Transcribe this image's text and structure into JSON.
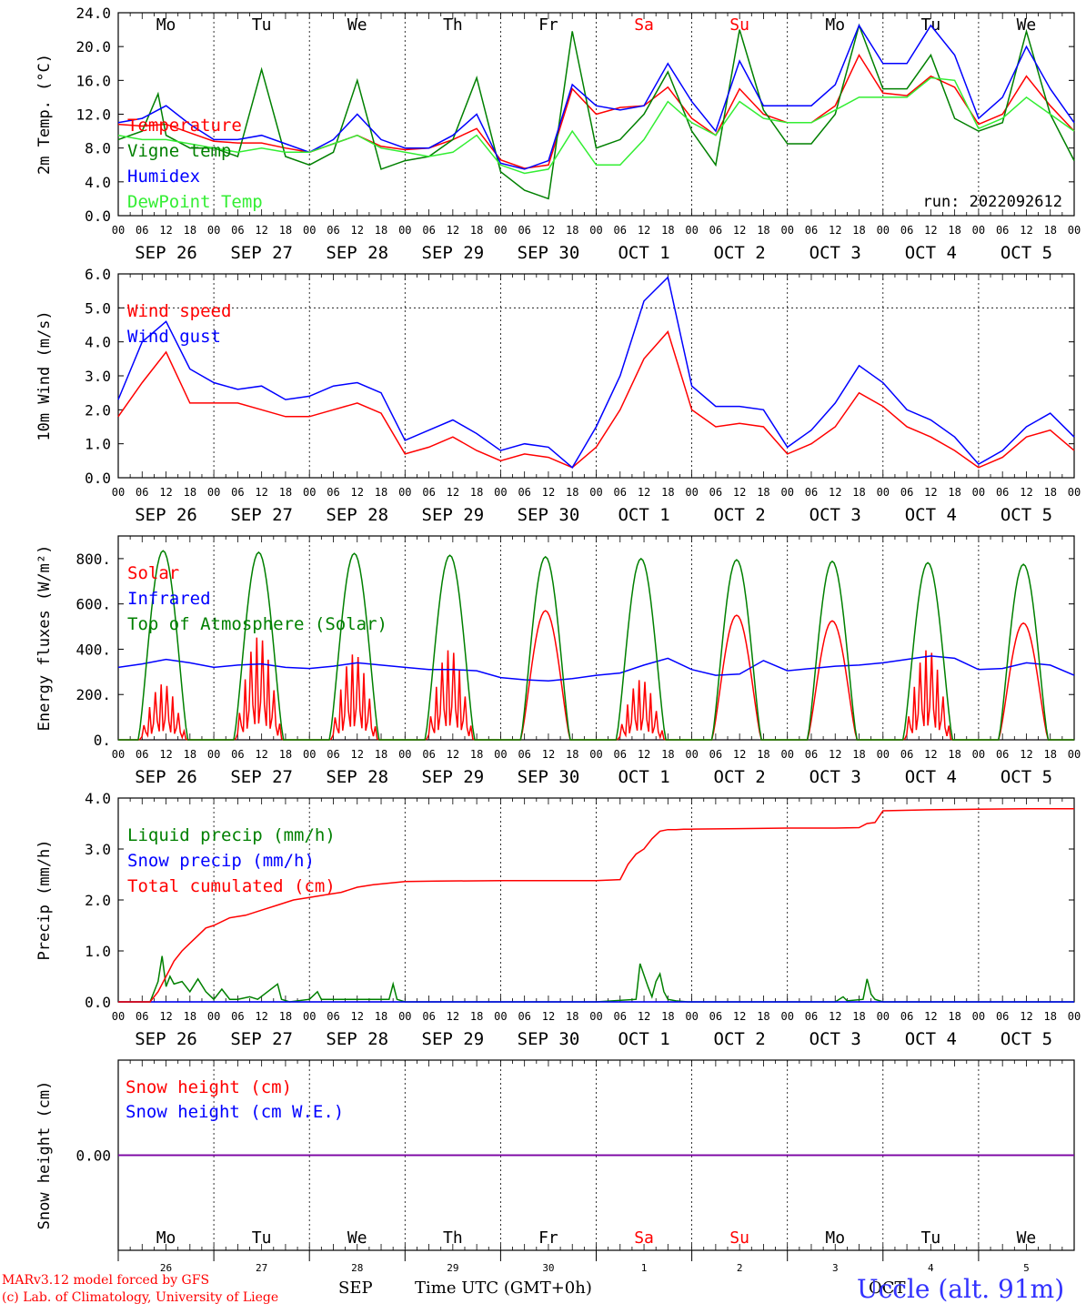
{
  "meta": {
    "run_label": "run: 2022092612",
    "model_line1": "MARv3.12 model forced by GFS",
    "model_line2": "(c) Lab. of Climatology, University of Liege",
    "station": "Uccle (alt. 91m)",
    "month_label": "SEP",
    "month_label2": "OCT",
    "time_label": "Time UTC (GMT+0h)"
  },
  "axis": {
    "hour_ticks": [
      "00",
      "06",
      "12",
      "18"
    ],
    "end_tick": "00",
    "day_labels": [
      "SEP 26",
      "SEP 27",
      "SEP 28",
      "SEP 29",
      "SEP 30",
      "OCT  1",
      "OCT  2",
      "OCT  3",
      "OCT  4",
      "OCT  5"
    ],
    "weekdays": [
      "Mo",
      "Tu",
      "We",
      "Th",
      "Fr",
      "Sa",
      "Su",
      "Mo",
      "Tu",
      "We"
    ],
    "weekend_flags": [
      false,
      false,
      false,
      false,
      false,
      true,
      true,
      false,
      false,
      false
    ],
    "day_numbers": [
      "26",
      "27",
      "28",
      "29",
      "30",
      "1",
      "2",
      "3",
      "4",
      "5"
    ]
  },
  "colors": {
    "red": "#ff0000",
    "darkgreen": "#008000",
    "blue": "#0000ff",
    "lightgreen": "#33ee33",
    "purple": "#8000a0",
    "weekend": "#ff0000"
  },
  "chart_data": [
    {
      "id": "temp",
      "type": "line",
      "ylabel": "2m Temp. (°C)",
      "ylim": [
        0,
        24
      ],
      "yticks": [
        "0.0",
        "4.0",
        "8.0",
        "12.0",
        "16.0",
        "20.0",
        "24.0"
      ],
      "x_unit": "hours since SEP 26 00 UTC",
      "xlim": [
        0,
        240
      ],
      "grid": "vertical dotted day lines",
      "legend_placement": "left",
      "series": [
        {
          "name": "Temperature",
          "color": "red",
          "x": [
            0,
            6,
            12,
            18,
            24,
            30,
            36,
            42,
            48,
            54,
            60,
            66,
            72,
            78,
            84,
            90,
            96,
            102,
            108,
            114,
            120,
            126,
            132,
            138,
            144,
            150,
            156,
            162,
            168,
            174,
            180,
            186,
            192,
            198,
            204,
            210,
            216,
            222,
            228,
            234,
            240
          ],
          "y": [
            10.8,
            10.6,
            10.8,
            9.8,
            8.8,
            8.6,
            8.6,
            8.0,
            7.5,
            8.5,
            9.5,
            8.2,
            7.8,
            8.0,
            9.0,
            10.3,
            6.6,
            5.6,
            6.0,
            15.0,
            12.0,
            12.8,
            13.0,
            15.2,
            11.5,
            9.5,
            15.0,
            12.0,
            11.0,
            11.0,
            13.0,
            19.0,
            14.5,
            14.2,
            16.5,
            15.2,
            10.8,
            12.0,
            16.5,
            13.0,
            10.0
          ]
        },
        {
          "name": "Vigne temp",
          "color": "darkgreen",
          "x": [
            0,
            6,
            10,
            12,
            18,
            24,
            30,
            36,
            42,
            48,
            54,
            60,
            66,
            72,
            78,
            84,
            90,
            96,
            102,
            108,
            114,
            120,
            126,
            132,
            138,
            144,
            150,
            156,
            162,
            168,
            174,
            180,
            186,
            192,
            198,
            204,
            210,
            216,
            222,
            228,
            234,
            240
          ],
          "y": [
            9.0,
            10.0,
            14.4,
            9.5,
            8.0,
            8.0,
            7.0,
            17.3,
            7.0,
            6.0,
            7.5,
            16.0,
            5.5,
            6.5,
            7.0,
            9.0,
            16.3,
            5.2,
            3.0,
            2.0,
            21.8,
            8.0,
            9.0,
            12.0,
            17.0,
            10.0,
            6.0,
            22.0,
            12.5,
            8.5,
            8.5,
            12.0,
            22.5,
            15.0,
            15.0,
            19.0,
            11.5,
            10.0,
            11.0,
            21.8,
            12.0,
            6.5
          ]
        },
        {
          "name": "Humidex",
          "color": "blue",
          "x": [
            0,
            6,
            12,
            18,
            24,
            30,
            36,
            42,
            48,
            54,
            60,
            66,
            72,
            78,
            84,
            90,
            96,
            102,
            108,
            114,
            120,
            126,
            132,
            138,
            144,
            150,
            156,
            162,
            168,
            174,
            180,
            186,
            192,
            198,
            204,
            210,
            216,
            222,
            228,
            234,
            240
          ],
          "y": [
            11.0,
            11.5,
            13.0,
            10.8,
            9.0,
            9.0,
            9.5,
            8.5,
            7.5,
            9.0,
            12.0,
            9.0,
            8.0,
            8.0,
            9.5,
            12.0,
            6.2,
            5.5,
            6.5,
            15.5,
            13.0,
            12.5,
            13.0,
            18.0,
            13.5,
            10.0,
            18.3,
            13.0,
            13.0,
            13.0,
            15.5,
            22.5,
            18.0,
            18.0,
            22.5,
            19.0,
            11.5,
            14.0,
            20.0,
            15.0,
            11.0
          ]
        },
        {
          "name": "DewPoint Temp",
          "color": "lightgreen",
          "x": [
            0,
            6,
            12,
            18,
            24,
            30,
            36,
            42,
            48,
            54,
            60,
            66,
            72,
            78,
            84,
            90,
            96,
            102,
            108,
            114,
            120,
            126,
            132,
            138,
            144,
            150,
            156,
            162,
            168,
            174,
            180,
            186,
            192,
            198,
            204,
            210,
            216,
            222,
            228,
            234,
            240
          ],
          "y": [
            9.5,
            9.0,
            9.0,
            8.5,
            8.0,
            7.5,
            8.0,
            7.5,
            7.5,
            8.5,
            9.5,
            8.0,
            7.5,
            7.0,
            7.5,
            9.5,
            6.0,
            5.0,
            5.5,
            10.0,
            6.0,
            6.0,
            9.0,
            13.5,
            11.0,
            9.5,
            13.5,
            11.5,
            11.0,
            11.0,
            12.5,
            14.0,
            14.0,
            14.0,
            16.3,
            16.0,
            10.3,
            11.5,
            14.0,
            12.0,
            10.0
          ]
        }
      ]
    },
    {
      "id": "wind",
      "type": "line",
      "ylabel": "10m Wind (m/s)",
      "ylim": [
        0,
        6
      ],
      "yticks": [
        "0.0",
        "1.0",
        "2.0",
        "3.0",
        "4.0",
        "5.0",
        "6.0"
      ],
      "hline": 5.0,
      "xlim": [
        0,
        240
      ],
      "legend_placement": "top-left",
      "series": [
        {
          "name": "Wind speed",
          "color": "red",
          "x": [
            0,
            6,
            12,
            18,
            24,
            30,
            36,
            42,
            48,
            54,
            60,
            66,
            72,
            78,
            84,
            90,
            96,
            102,
            108,
            114,
            120,
            126,
            132,
            138,
            144,
            150,
            156,
            162,
            168,
            174,
            180,
            186,
            192,
            198,
            204,
            210,
            216,
            222,
            228,
            234,
            240
          ],
          "y": [
            1.8,
            2.8,
            3.7,
            2.2,
            2.2,
            2.2,
            2.0,
            1.8,
            1.8,
            2.0,
            2.2,
            1.9,
            0.7,
            0.9,
            1.2,
            0.8,
            0.5,
            0.7,
            0.6,
            0.3,
            0.9,
            2.0,
            3.5,
            4.3,
            2.0,
            1.5,
            1.6,
            1.5,
            0.7,
            1.0,
            1.5,
            2.5,
            2.1,
            1.5,
            1.2,
            0.8,
            0.3,
            0.6,
            1.2,
            1.4,
            0.8
          ]
        },
        {
          "name": "Wind gust",
          "color": "blue",
          "x": [
            0,
            6,
            12,
            18,
            24,
            30,
            36,
            42,
            48,
            54,
            60,
            66,
            72,
            78,
            84,
            90,
            96,
            102,
            108,
            114,
            120,
            126,
            132,
            138,
            144,
            150,
            156,
            162,
            168,
            174,
            180,
            186,
            192,
            198,
            204,
            210,
            216,
            222,
            228,
            234,
            240
          ],
          "y": [
            2.3,
            4.0,
            4.6,
            3.2,
            2.8,
            2.6,
            2.7,
            2.3,
            2.4,
            2.7,
            2.8,
            2.5,
            1.1,
            1.4,
            1.7,
            1.3,
            0.8,
            1.0,
            0.9,
            0.3,
            1.5,
            3.0,
            5.2,
            5.9,
            2.7,
            2.1,
            2.1,
            2.0,
            0.9,
            1.4,
            2.2,
            3.3,
            2.8,
            2.0,
            1.7,
            1.2,
            0.4,
            0.8,
            1.5,
            1.9,
            1.2
          ]
        }
      ]
    },
    {
      "id": "energy",
      "type": "line",
      "ylabel": "Energy fluxes (W/m²)",
      "ylim": [
        0,
        900
      ],
      "yticks": [
        "0.",
        "200.",
        "400.",
        "600.",
        "800."
      ],
      "ytick_values": [
        0,
        200,
        400,
        600,
        800
      ],
      "xlim": [
        0,
        240
      ],
      "legend_placement": "top-left",
      "series": [
        {
          "name": "Solar",
          "color": "red",
          "sunrise": 5,
          "sunset": 17.5,
          "day_peaks": [
            260,
            480,
            400,
            420,
            570,
            280,
            550,
            525,
            420,
            515
          ],
          "day_shape": [
            "spiky",
            "spiky",
            "spiky",
            "spiky",
            "smooth",
            "spiky",
            "smooth",
            "smooth",
            "spiky",
            "smooth"
          ]
        },
        {
          "name": "Infrared",
          "color": "blue",
          "x": [
            0,
            6,
            12,
            18,
            24,
            30,
            36,
            42,
            48,
            54,
            60,
            66,
            72,
            78,
            84,
            90,
            96,
            102,
            108,
            114,
            120,
            126,
            132,
            138,
            144,
            150,
            156,
            162,
            168,
            174,
            180,
            186,
            192,
            198,
            204,
            210,
            216,
            222,
            228,
            234,
            240
          ],
          "y": [
            320,
            335,
            355,
            340,
            320,
            330,
            335,
            320,
            315,
            325,
            340,
            330,
            320,
            310,
            310,
            305,
            275,
            265,
            260,
            270,
            285,
            295,
            330,
            360,
            310,
            285,
            290,
            350,
            305,
            315,
            325,
            330,
            340,
            355,
            370,
            360,
            310,
            315,
            340,
            330,
            285
          ]
        },
        {
          "name": "Top of Atmosphere (Solar)",
          "color": "darkgreen",
          "sunrise": 5,
          "sunset": 17.5,
          "day_peaks": [
            835,
            828,
            823,
            815,
            808,
            800,
            795,
            788,
            782,
            775
          ]
        }
      ]
    },
    {
      "id": "precip",
      "type": "line",
      "ylabel": "Precip (mm/h)",
      "ylim": [
        0,
        4
      ],
      "yticks": [
        "0.0",
        "1.0",
        "2.0",
        "3.0",
        "4.0"
      ],
      "xlim": [
        0,
        240
      ],
      "legend_placement": "top-left",
      "series": [
        {
          "name": "Liquid precip (mm/h)",
          "color": "darkgreen",
          "x": [
            0,
            8,
            10,
            11,
            12,
            13,
            14,
            16,
            18,
            20,
            22,
            24,
            26,
            28,
            30,
            33,
            35,
            40,
            41,
            43,
            48,
            50,
            51,
            53,
            60,
            68,
            69,
            70,
            72,
            120,
            130,
            131,
            133,
            134,
            135,
            136,
            137,
            138,
            140,
            143,
            180,
            182,
            183,
            187,
            188,
            189,
            190,
            192,
            200,
            240
          ],
          "y": [
            0,
            0,
            0.4,
            0.9,
            0.3,
            0.5,
            0.35,
            0.4,
            0.2,
            0.45,
            0.2,
            0.05,
            0.25,
            0.05,
            0.05,
            0.1,
            0.05,
            0.35,
            0.05,
            0,
            0.05,
            0.2,
            0.05,
            0.05,
            0.05,
            0.05,
            0.35,
            0.05,
            0,
            0,
            0.05,
            0.75,
            0.3,
            0.1,
            0.4,
            0.55,
            0.2,
            0.05,
            0.02,
            0,
            0,
            0.1,
            0.02,
            0.05,
            0.45,
            0.15,
            0.05,
            0,
            0,
            0
          ]
        },
        {
          "name": "Snow precip (mm/h)",
          "color": "blue",
          "x": [
            0,
            240
          ],
          "y": [
            0,
            0
          ]
        },
        {
          "name": "Total cumulated (cm)",
          "color": "red",
          "x": [
            0,
            8,
            10,
            12,
            14,
            16,
            18,
            20,
            22,
            24,
            28,
            32,
            36,
            40,
            44,
            48,
            52,
            56,
            60,
            64,
            68,
            72,
            80,
            96,
            110,
            120,
            126,
            128,
            130,
            132,
            134,
            136,
            138,
            140,
            142,
            144,
            156,
            168,
            180,
            186,
            188,
            190,
            192,
            204,
            216,
            228,
            240
          ],
          "y": [
            0,
            0,
            0.2,
            0.5,
            0.8,
            1.0,
            1.15,
            1.3,
            1.45,
            1.5,
            1.65,
            1.7,
            1.8,
            1.9,
            2.0,
            2.05,
            2.1,
            2.15,
            2.25,
            2.3,
            2.33,
            2.36,
            2.37,
            2.38,
            2.38,
            2.38,
            2.4,
            2.7,
            2.9,
            3.0,
            3.2,
            3.35,
            3.38,
            3.38,
            3.39,
            3.39,
            3.4,
            3.41,
            3.41,
            3.42,
            3.5,
            3.52,
            3.75,
            3.77,
            3.78,
            3.79,
            3.79
          ]
        }
      ]
    },
    {
      "id": "snow",
      "type": "line",
      "ylabel": "Snow height (cm)",
      "ylim": [
        -1,
        1
      ],
      "yticks": [
        "0.00"
      ],
      "ytick_values": [
        0
      ],
      "xlim": [
        0,
        240
      ],
      "legend_placement": "top-left",
      "series": [
        {
          "name": "Snow height (cm)",
          "color": "red",
          "x": [
            0,
            240
          ],
          "y": [
            0,
            0
          ]
        },
        {
          "name": "Snow height (cm W.E.)",
          "color": "blue",
          "x": [
            0,
            240
          ],
          "y": [
            0,
            0
          ]
        }
      ]
    }
  ]
}
